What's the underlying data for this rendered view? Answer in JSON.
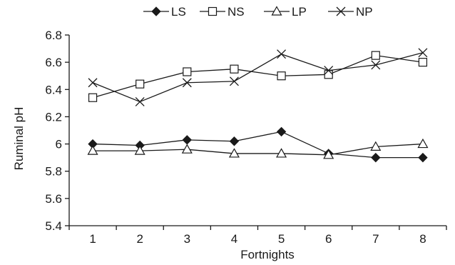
{
  "chart_data": {
    "type": "line",
    "title": "",
    "xlabel": "Fortnights",
    "ylabel": "Ruminal pH",
    "categories": [
      "1",
      "2",
      "3",
      "4",
      "5",
      "6",
      "7",
      "8"
    ],
    "y_ticks": [
      "5.4",
      "5.6",
      "5.8",
      "6",
      "6.2",
      "6.4",
      "6.6",
      "6.8"
    ],
    "ylim": [
      5.4,
      6.8
    ],
    "grid": false,
    "legend_position": "top",
    "series": [
      {
        "name": "LS",
        "marker": "filled-diamond",
        "color": "#1a1a1a",
        "values": [
          6.0,
          5.99,
          6.03,
          6.02,
          6.09,
          5.93,
          5.9,
          5.9
        ]
      },
      {
        "name": "NS",
        "marker": "open-square",
        "color": "#1a1a1a",
        "values": [
          6.34,
          6.44,
          6.53,
          6.55,
          6.5,
          6.51,
          6.65,
          6.6
        ]
      },
      {
        "name": "LP",
        "marker": "open-triangle",
        "color": "#1a1a1a",
        "values": [
          5.95,
          5.95,
          5.96,
          5.93,
          5.93,
          5.92,
          5.98,
          6.0
        ]
      },
      {
        "name": "NP",
        "marker": "x-cross",
        "color": "#1a1a1a",
        "values": [
          6.45,
          6.31,
          6.45,
          6.46,
          6.66,
          6.54,
          6.58,
          6.67
        ]
      }
    ]
  }
}
